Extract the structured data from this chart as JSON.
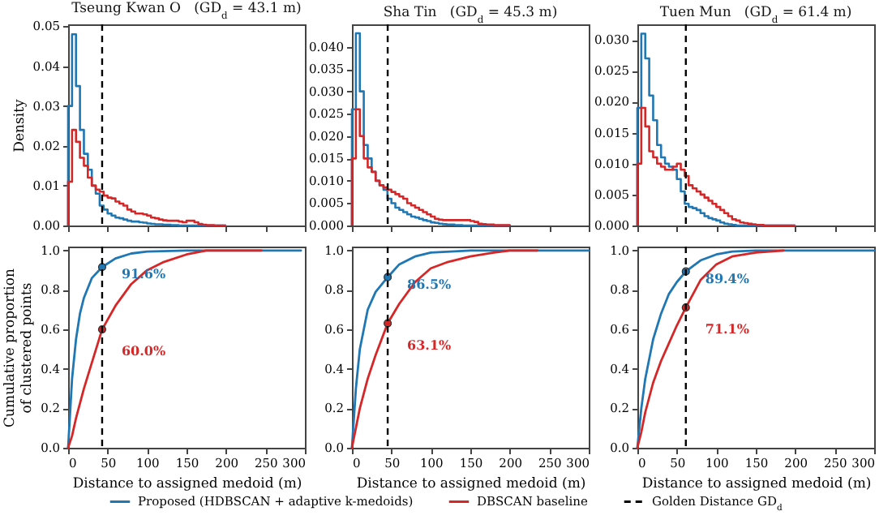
{
  "chart_data": [
    {
      "type": "histogram",
      "title": "Tseung Kwan O   (GD$_{d}$ = 43.1 m)",
      "ylabel": "Density",
      "xlim": [
        0,
        300
      ],
      "xticks": [
        0,
        50,
        100,
        150,
        200,
        250,
        300
      ],
      "ylim": [
        0,
        0.0505
      ],
      "yticks": [
        {
          "value": 0,
          "label": "0.00"
        },
        0.01,
        0.02,
        0.03,
        0.04,
        0.05
      ],
      "tick_labels": "y",
      "bins": [
        0,
        5,
        10,
        15,
        20,
        25,
        30,
        35,
        40,
        45,
        50,
        55,
        60,
        65,
        70,
        75,
        80,
        85,
        90,
        95,
        100,
        105,
        110,
        115,
        120,
        125,
        130,
        135,
        140,
        145,
        150,
        155,
        160,
        165,
        170,
        175,
        180,
        185,
        190,
        195,
        200
      ],
      "series": [
        {
          "color": "#1f77b4",
          "values": [
            0.03,
            0.048,
            0.035,
            0.024,
            0.018,
            0.014,
            0.01,
            0.008,
            0.005,
            0.004,
            0.003,
            0.0025,
            0.002,
            0.0018,
            0.0015,
            0.0012,
            0.001,
            0.001,
            0.0008,
            0.0007,
            0.0005,
            0.0004,
            0.0003,
            0.0003,
            0.0002,
            0.0002,
            0.0001,
            0.0001,
            0,
            0,
            0,
            0,
            0,
            0,
            0,
            0,
            0,
            0,
            0,
            0
          ]
        },
        {
          "color": "#d62728",
          "values": [
            0.011,
            0.024,
            0.021,
            0.017,
            0.015,
            0.012,
            0.01,
            0.009,
            0.0085,
            0.0075,
            0.007,
            0.0068,
            0.006,
            0.0055,
            0.005,
            0.004,
            0.0035,
            0.003,
            0.003,
            0.0028,
            0.0025,
            0.002,
            0.0018,
            0.0015,
            0.0013,
            0.0012,
            0.0012,
            0.0012,
            0.001,
            0.0008,
            0.0012,
            0.0012,
            0.0008,
            0.0004,
            0.0002,
            0.0001,
            0.0001,
            0,
            0,
            0
          ]
        }
      ],
      "ref_lines": [
        {
          "axis": "x",
          "value": 43.1,
          "color": "#000000",
          "line_style": "dashed"
        }
      ]
    },
    {
      "type": "histogram",
      "title": "Sha Tin   (GD$_{d}$ = 45.3 m)",
      "xlim": [
        0,
        300
      ],
      "xticks": [
        0,
        50,
        100,
        150,
        200,
        250,
        300
      ],
      "ylim": [
        0,
        0.045
      ],
      "yticks": [
        {
          "value": 0,
          "label": "0.000"
        },
        0.005,
        {
          "value": 0.01,
          "label": "0.010"
        },
        0.015,
        {
          "value": 0.02,
          "label": "0.020"
        },
        0.025,
        {
          "value": 0.03,
          "label": "0.030"
        },
        0.035,
        {
          "value": 0.04,
          "label": "0.040"
        }
      ],
      "tick_labels": "y",
      "bins": [
        0,
        5,
        10,
        15,
        20,
        25,
        30,
        35,
        40,
        45,
        50,
        55,
        60,
        65,
        70,
        75,
        80,
        85,
        90,
        95,
        100,
        105,
        110,
        115,
        120,
        125,
        130,
        135,
        140,
        145,
        150,
        155,
        160,
        165,
        170,
        175,
        180,
        185,
        190,
        195,
        200
      ],
      "series": [
        {
          "color": "#1f77b4",
          "values": [
            0.026,
            0.043,
            0.03,
            0.018,
            0.015,
            0.012,
            0.01,
            0.009,
            0.008,
            0.006,
            0.005,
            0.004,
            0.0035,
            0.003,
            0.0025,
            0.002,
            0.0018,
            0.0015,
            0.0012,
            0.001,
            0.0007,
            0.0006,
            0.0004,
            0.0003,
            0.0002,
            0.0002,
            0.0001,
            0.0001,
            0,
            0,
            0,
            0,
            0,
            0,
            0,
            0,
            0,
            0,
            0,
            0
          ]
        },
        {
          "color": "#d62728",
          "values": [
            0.015,
            0.026,
            0.02,
            0.015,
            0.013,
            0.012,
            0.01,
            0.009,
            0.0085,
            0.008,
            0.0075,
            0.007,
            0.0065,
            0.006,
            0.005,
            0.0045,
            0.004,
            0.0035,
            0.003,
            0.0025,
            0.002,
            0.0015,
            0.0013,
            0.0012,
            0.0012,
            0.0012,
            0.0012,
            0.0012,
            0.0012,
            0.0012,
            0.001,
            0.0008,
            0.0004,
            0.0003,
            0.0002,
            0.0002,
            0.0001,
            0.0001,
            0.0001,
            0.0001
          ]
        }
      ],
      "ref_lines": [
        {
          "axis": "x",
          "value": 45.3,
          "color": "#000000",
          "line_style": "dashed"
        }
      ]
    },
    {
      "type": "histogram",
      "title": "Tuen Mun   (GD$_{d}$ = 61.4 m)",
      "xlim": [
        0,
        300
      ],
      "xticks": [
        0,
        50,
        100,
        150,
        200,
        250,
        300
      ],
      "ylim": [
        0,
        0.0325
      ],
      "yticks": [
        {
          "value": 0,
          "label": "0.000"
        },
        0.005,
        {
          "value": 0.01,
          "label": "0.010"
        },
        0.015,
        {
          "value": 0.02,
          "label": "0.020"
        },
        0.025,
        {
          "value": 0.03,
          "label": "0.030"
        }
      ],
      "tick_labels": "y",
      "bins": [
        0,
        5,
        10,
        15,
        20,
        25,
        30,
        35,
        40,
        45,
        50,
        55,
        60,
        65,
        70,
        75,
        80,
        85,
        90,
        95,
        100,
        105,
        110,
        115,
        120,
        125,
        130,
        135,
        140,
        145,
        150,
        155,
        160,
        165,
        170,
        175,
        180,
        185,
        190,
        195,
        200
      ],
      "series": [
        {
          "color": "#1f77b4",
          "values": [
            0.019,
            0.031,
            0.027,
            0.021,
            0.017,
            0.013,
            0.011,
            0.01,
            0.0095,
            0.009,
            0.0075,
            0.0055,
            0.0035,
            0.003,
            0.0028,
            0.0025,
            0.002,
            0.0015,
            0.0012,
            0.001,
            0.0008,
            0.0005,
            0.0003,
            0.0002,
            0.0001,
            0,
            0,
            0,
            0,
            0,
            0,
            0,
            0,
            0,
            0,
            0,
            0,
            0,
            0,
            0
          ]
        },
        {
          "color": "#d62728",
          "values": [
            0.01,
            0.019,
            0.016,
            0.012,
            0.011,
            0.01,
            0.0095,
            0.009,
            0.009,
            0.0095,
            0.01,
            0.009,
            0.008,
            0.0065,
            0.006,
            0.0055,
            0.005,
            0.0045,
            0.004,
            0.0035,
            0.003,
            0.0025,
            0.002,
            0.0015,
            0.001,
            0.0008,
            0.0005,
            0.0004,
            0.0003,
            0.0002,
            0.0001,
            0.0001,
            0,
            0,
            0,
            0,
            0,
            0,
            0,
            0
          ]
        }
      ],
      "ref_lines": [
        {
          "axis": "x",
          "value": 61.4,
          "color": "#000000",
          "line_style": "dashed"
        }
      ]
    },
    {
      "type": "line",
      "xlabel": "Distance to assigned medoid (m)",
      "ylabel": "Cumulative proportion\nof clustered points",
      "xlim": [
        0,
        300
      ],
      "xticks": [
        0,
        50,
        100,
        150,
        200,
        250,
        300
      ],
      "ylim": [
        0,
        1.02
      ],
      "yticks": [
        {
          "value": 0,
          "label": "0.0"
        },
        0.2,
        0.4,
        0.6,
        0.8,
        {
          "value": 1,
          "label": "1.0"
        }
      ],
      "line_style": "solid",
      "series": [
        {
          "color": "#1f77b4",
          "x": [
            0,
            5,
            10,
            15,
            20,
            30,
            43.1,
            60,
            80,
            100,
            150,
            295
          ],
          "values": [
            0,
            0.35,
            0.55,
            0.68,
            0.76,
            0.86,
            0.916,
            0.96,
            0.985,
            0.995,
            1,
            1
          ]
        },
        {
          "color": "#d62728",
          "x": [
            0,
            5,
            10,
            20,
            30,
            43.1,
            60,
            80,
            100,
            120,
            150,
            175,
            245
          ],
          "values": [
            0,
            0.06,
            0.15,
            0.3,
            0.43,
            0.6,
            0.72,
            0.83,
            0.9,
            0.94,
            0.98,
            1,
            1
          ]
        },
        {
          "type": "scatter",
          "marker": "circle",
          "color": "#1f77b4",
          "x": [
            43.1
          ],
          "values": [
            0.916
          ],
          "value_labels": [
            "91.6%"
          ]
        },
        {
          "type": "scatter",
          "marker": "circle",
          "color": "#d62728",
          "x": [
            43.1
          ],
          "values": [
            0.6
          ],
          "value_labels": [
            "60.0%"
          ]
        }
      ],
      "ref_lines": [
        {
          "axis": "x",
          "value": 43.1,
          "color": "#000000",
          "line_style": "dashed"
        }
      ]
    },
    {
      "type": "line",
      "xlabel": "Distance to assigned medoid (m)",
      "xlim": [
        0,
        300
      ],
      "xticks": [
        0,
        50,
        100,
        150,
        200,
        250,
        300
      ],
      "ylim": [
        0,
        1.02
      ],
      "yticks": [
        {
          "value": 0,
          "label": "0.0"
        },
        0.2,
        0.4,
        0.6,
        0.8,
        {
          "value": 1,
          "label": "1.0"
        }
      ],
      "line_style": "solid",
      "legend": "bottom",
      "series": [
        {
          "name": "Proposed (HDBSCAN + adaptive k-medoids)",
          "color": "#1f77b4",
          "x": [
            0,
            5,
            10,
            20,
            30,
            45.3,
            60,
            80,
            100,
            150,
            300
          ],
          "values": [
            0,
            0.3,
            0.5,
            0.7,
            0.79,
            0.865,
            0.93,
            0.97,
            0.99,
            1,
            1
          ]
        },
        {
          "name": "DBSCAN baseline",
          "color": "#d62728",
          "x": [
            0,
            5,
            10,
            20,
            30,
            45.3,
            60,
            80,
            100,
            120,
            150,
            180,
            200,
            235
          ],
          "values": [
            0,
            0.1,
            0.2,
            0.35,
            0.47,
            0.631,
            0.73,
            0.84,
            0.91,
            0.94,
            0.97,
            0.99,
            1,
            1
          ]
        },
        {
          "type": "scatter",
          "marker": "circle",
          "color": "#1f77b4",
          "x": [
            45.3
          ],
          "values": [
            0.865
          ],
          "value_labels": [
            "86.5%"
          ]
        },
        {
          "type": "scatter",
          "marker": "circle",
          "color": "#d62728",
          "x": [
            45.3
          ],
          "values": [
            0.631
          ],
          "value_labels": [
            "63.1%"
          ]
        }
      ],
      "ref_lines": [
        {
          "axis": "x",
          "value": 45.3,
          "color": "#000000",
          "line_style": "dashed",
          "label": "Golden Distance GD$_{d}$"
        }
      ]
    },
    {
      "type": "line",
      "xlabel": "Distance to assigned medoid (m)",
      "xlim": [
        0,
        300
      ],
      "xticks": [
        0,
        50,
        100,
        150,
        200,
        250,
        300
      ],
      "ylim": [
        0,
        1.02
      ],
      "yticks": [
        {
          "value": 0,
          "label": "0.0"
        },
        0.2,
        0.4,
        0.6,
        0.8,
        {
          "value": 1,
          "label": "1.0"
        }
      ],
      "line_style": "solid",
      "series": [
        {
          "color": "#1f77b4",
          "x": [
            0,
            5,
            10,
            20,
            30,
            40,
            50,
            61.4,
            80,
            100,
            120,
            150,
            300
          ],
          "values": [
            0,
            0.2,
            0.35,
            0.55,
            0.68,
            0.78,
            0.84,
            0.894,
            0.95,
            0.98,
            0.995,
            1,
            1
          ]
        },
        {
          "color": "#d62728",
          "x": [
            0,
            5,
            10,
            20,
            30,
            40,
            50,
            61.4,
            80,
            100,
            120,
            150,
            185
          ],
          "values": [
            0,
            0.08,
            0.18,
            0.33,
            0.44,
            0.53,
            0.62,
            0.711,
            0.85,
            0.93,
            0.97,
            0.99,
            1
          ]
        },
        {
          "type": "scatter",
          "marker": "circle",
          "color": "#1f77b4",
          "x": [
            61.4
          ],
          "values": [
            0.894
          ],
          "value_labels": [
            "89.4%"
          ]
        },
        {
          "type": "scatter",
          "marker": "circle",
          "color": "#d62728",
          "x": [
            61.4
          ],
          "values": [
            0.711
          ],
          "value_labels": [
            "71.1%"
          ]
        }
      ],
      "ref_lines": [
        {
          "axis": "x",
          "value": 61.4,
          "color": "#000000",
          "line_style": "dashed"
        }
      ]
    }
  ]
}
